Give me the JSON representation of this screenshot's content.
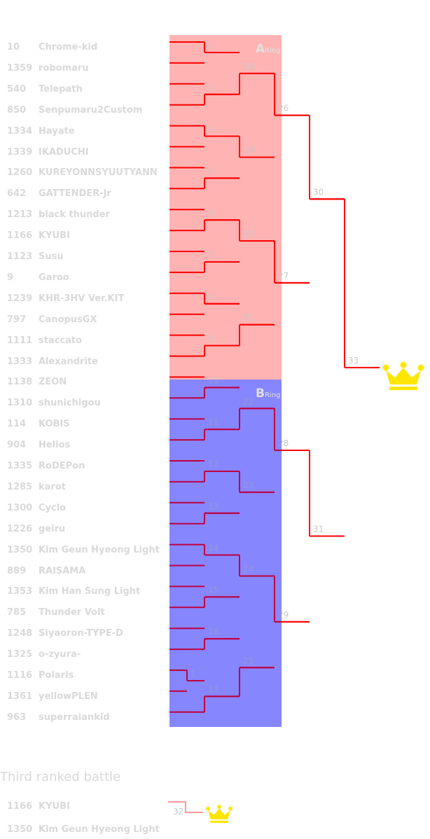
{
  "players": [
    {
      "id": "10",
      "name": "Chrome-kid"
    },
    {
      "id": "1359",
      "name": "robomaru"
    },
    {
      "id": "540",
      "name": "Telepath"
    },
    {
      "id": "850",
      "name": "Senpumaru2Custom"
    },
    {
      "id": "1334",
      "name": "Hayate"
    },
    {
      "id": "1339",
      "name": "IKADUCHI"
    },
    {
      "id": "1260",
      "name": "KUREYONNSYUUTYANN"
    },
    {
      "id": "642",
      "name": "GATTENDER-Jr"
    },
    {
      "id": "1213",
      "name": "black thunder"
    },
    {
      "id": "1166",
      "name": "KYUBI"
    },
    {
      "id": "1123",
      "name": "Susu"
    },
    {
      "id": "9",
      "name": "Garoo"
    },
    {
      "id": "1239",
      "name": "KHR-3HV Ver.KIT"
    },
    {
      "id": "797",
      "name": "CanopusGX"
    },
    {
      "id": "1111",
      "name": "staccato"
    },
    {
      "id": "1333",
      "name": "Alexandrite"
    },
    {
      "id": "1138",
      "name": "ZEON"
    },
    {
      "id": "1310",
      "name": "shunichigou"
    },
    {
      "id": "114",
      "name": "KOBIS"
    },
    {
      "id": "904",
      "name": "Helios"
    },
    {
      "id": "1335",
      "name": "RoDEPon"
    },
    {
      "id": "1285",
      "name": "karot"
    },
    {
      "id": "1300",
      "name": "Cyclo"
    },
    {
      "id": "1226",
      "name": "geiru"
    },
    {
      "id": "1350",
      "name": "Kim Geun Hyeong Light"
    },
    {
      "id": "889",
      "name": "RAISAMA"
    },
    {
      "id": "1353",
      "name": "Kim Han Sung Light"
    },
    {
      "id": "785",
      "name": "Thunder Volt"
    },
    {
      "id": "1248",
      "name": "Siyaoron-TYPE-D"
    },
    {
      "id": "1325",
      "name": "o-zyura-"
    },
    {
      "id": "1116",
      "name": "Polaris"
    },
    {
      "id": "1361",
      "name": "yellowPLEN"
    },
    {
      "id": "963",
      "name": "superraiankid"
    }
  ],
  "rings": [
    {
      "letter": "A",
      "suffix": "Ring",
      "color": "#ffb3b3"
    },
    {
      "letter": "B",
      "suffix": "Ring",
      "color": "#b3b3ff"
    }
  ],
  "line_color": "#ff0000",
  "crown_color": "#ffe600",
  "matches": [
    {
      "label": "1",
      "winner": "top"
    },
    {
      "label": "2",
      "winner": "top"
    },
    {
      "label": "3",
      "winner": "bottom"
    },
    {
      "label": "4",
      "winner": "top"
    },
    {
      "label": "5",
      "winner": "bottom"
    },
    {
      "label": "6",
      "winner": "bottom"
    },
    {
      "label": "7",
      "winner": "bottom"
    },
    {
      "label": "8",
      "winner": "top"
    },
    {
      "label": "9",
      "winner": "bottom"
    },
    {
      "label": "10",
      "winner": "bottom"
    },
    {
      "label": "11",
      "winner": "bottom"
    },
    {
      "label": "12",
      "winner": "bottom"
    },
    {
      "label": "13",
      "winner": "bottom"
    },
    {
      "label": "14",
      "winner": "top"
    },
    {
      "label": "15",
      "winner": "bottom"
    },
    {
      "label": "16",
      "winner": "bottom"
    },
    {
      "label": "17",
      "winner": "bottom"
    },
    {
      "label": "18",
      "winner": "bottom"
    },
    {
      "label": "19",
      "winner": "top"
    },
    {
      "label": "20",
      "winner": "top"
    },
    {
      "label": "21",
      "winner": "bottom"
    },
    {
      "label": "22",
      "winner": "bottom"
    },
    {
      "label": "23",
      "winner": "top"
    },
    {
      "label": "24",
      "winner": "top"
    },
    {
      "label": "25",
      "winner": "bottom"
    },
    {
      "label": "26",
      "winner": "top"
    },
    {
      "label": "27",
      "winner": "top"
    },
    {
      "label": "28",
      "winner": "top"
    },
    {
      "label": "29",
      "winner": "top"
    },
    {
      "label": "30",
      "winner": "top"
    },
    {
      "label": "31",
      "winner": "top"
    },
    {
      "label": "32",
      "winner": "top"
    },
    {
      "label": "33",
      "winner": "top"
    }
  ],
  "third": {
    "title": "Third ranked battle",
    "players": [
      {
        "id": "1166",
        "name": "KYUBI"
      },
      {
        "id": "1350",
        "name": "Kim Geun Hyeong Light"
      }
    ],
    "match_label": "32"
  }
}
